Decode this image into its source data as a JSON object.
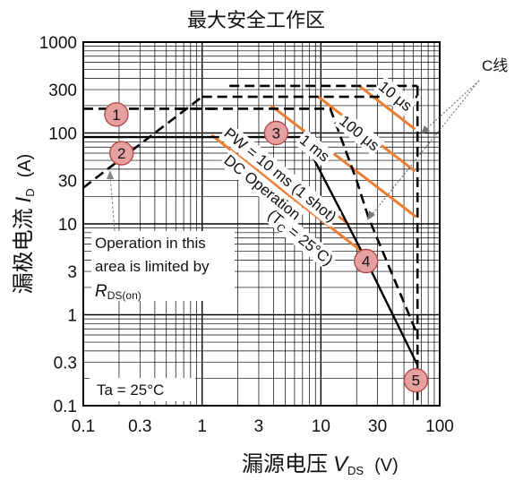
{
  "chart_data": {
    "type": "line",
    "title": "最大安全工作区",
    "xlabel": "漏源电压",
    "xlabel_symbol": "V",
    "xlabel_sub": "DS",
    "xlabel_unit": "(V)",
    "ylabel": "漏极电流",
    "ylabel_symbol": "I",
    "ylabel_sub": "D",
    "ylabel_unit": "(A)",
    "xscale": "log",
    "yscale": "log",
    "xlim": [
      0.1,
      100
    ],
    "ylim": [
      0.1,
      1000
    ],
    "xticks": [
      {
        "v": 0.1,
        "label": "0.1"
      },
      {
        "v": 0.3,
        "label": "0.3"
      },
      {
        "v": 1,
        "label": "1"
      },
      {
        "v": 3,
        "label": "3"
      },
      {
        "v": 10,
        "label": "10"
      },
      {
        "v": 30,
        "label": "30"
      },
      {
        "v": 100,
        "label": "100"
      }
    ],
    "yticks": [
      {
        "v": 0.1,
        "label": "0.1"
      },
      {
        "v": 0.3,
        "label": "0.3"
      },
      {
        "v": 1,
        "label": "1"
      },
      {
        "v": 3,
        "label": "3"
      },
      {
        "v": 10,
        "label": "10"
      },
      {
        "v": 30,
        "label": "30"
      },
      {
        "v": 100,
        "label": "100"
      },
      {
        "v": 300,
        "label": "300"
      },
      {
        "v": 1000,
        "label": "1000"
      }
    ],
    "grid": true,
    "series": [
      {
        "id": "rdson",
        "style": "dash-black",
        "points": [
          [
            0.1,
            25
          ],
          [
            1.0,
            250
          ]
        ]
      },
      {
        "id": "lim10us",
        "style": "dash-black",
        "points": [
          [
            1.7,
            330
          ],
          [
            65,
            330
          ]
        ]
      },
      {
        "id": "lim100us",
        "style": "dash-black",
        "points": [
          [
            1.0,
            250
          ],
          [
            65,
            250
          ]
        ]
      },
      {
        "id": "lim1ms",
        "style": "dash-black",
        "points": [
          [
            0.1,
            185
          ],
          [
            1.3,
            185
          ]
        ]
      },
      {
        "id": "lim1shot",
        "style": "dash-black",
        "points": [
          [
            0.62,
            185
          ],
          [
            12,
            185
          ],
          [
            20,
            30
          ],
          [
            25,
            12
          ],
          [
            65,
            0.6
          ]
        ]
      },
      {
        "id": "dc",
        "style": "solid-black",
        "points": [
          [
            0.1,
            90
          ],
          [
            1.1,
            90
          ],
          [
            7,
            90
          ],
          [
            22,
            5
          ],
          [
            65,
            0.28
          ]
        ]
      },
      {
        "id": "vdss",
        "style": "dash-black",
        "points": [
          [
            65,
            330
          ],
          [
            65,
            0.1
          ]
        ]
      },
      {
        "id": "slope10us",
        "style": "orange",
        "points": [
          [
            21,
            330
          ],
          [
            62,
            110
          ]
        ]
      },
      {
        "id": "slope100us",
        "style": "orange",
        "points": [
          [
            9.5,
            250
          ],
          [
            62,
            38
          ]
        ]
      },
      {
        "id": "slope1ms",
        "style": "orange",
        "points": [
          [
            3.8,
            200
          ],
          [
            63,
            12
          ]
        ]
      },
      {
        "id": "slopePW",
        "style": "orange",
        "points": [
          [
            1.6,
            110
          ],
          [
            17,
            10
          ]
        ]
      },
      {
        "id": "slopeDC",
        "style": "orange",
        "points": [
          [
            1.2,
            95
          ],
          [
            22,
            5
          ]
        ]
      }
    ],
    "pulse_labels": [
      {
        "text": "10 μs",
        "x": 30,
        "y": 310,
        "angle": 39
      },
      {
        "text": "100 μs",
        "x": 14,
        "y": 130,
        "angle": 39
      },
      {
        "text": "1 ms",
        "x": 6.5,
        "y": 80,
        "angle": 39
      },
      {
        "text": "PW = 10 ms (1 shot)",
        "x": 1.5,
        "y": 95,
        "angle": 39
      },
      {
        "text": "DC Operation",
        "x": 1.5,
        "y": 48,
        "angle": 39
      },
      {
        "text": "(T",
        "sub": "C",
        "rest": " = 25°C)",
        "x": 3.5,
        "y": 12,
        "angle": 39
      }
    ],
    "markers": [
      {
        "label": "1",
        "x": 0.19,
        "y": 160
      },
      {
        "label": "2",
        "x": 0.21,
        "y": 60
      },
      {
        "label": "3",
        "x": 4.2,
        "y": 100
      },
      {
        "label": "4",
        "x": 24,
        "y": 3.9
      },
      {
        "label": "5",
        "x": 63,
        "y": 0.19
      }
    ],
    "annotation": {
      "lines": [
        "Operation in this",
        "area is limited by"
      ],
      "rds": {
        "symbol": "R",
        "sub": "DS(on)"
      }
    },
    "temperature": "Ta = 25°C",
    "callout": "C线"
  }
}
